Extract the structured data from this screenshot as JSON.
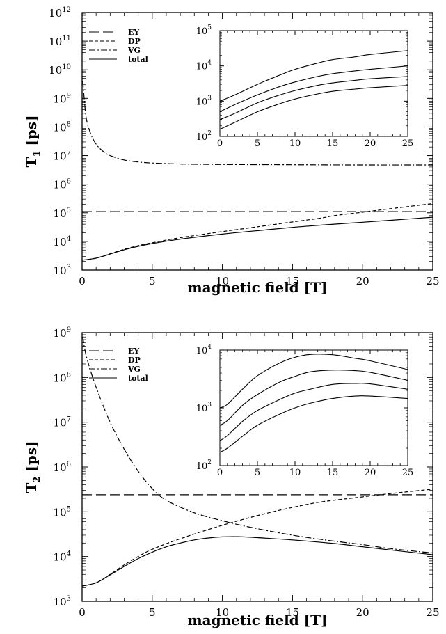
{
  "chart_data": [
    {
      "id": "t1",
      "type": "line",
      "yscale": "log",
      "xlabel": "magnetic field [T]",
      "ylabel_main": "T",
      "ylabel_sub": "1",
      "ylabel_unit": "[ps]",
      "xlim": [
        0,
        25
      ],
      "ylim_exp": [
        3,
        12
      ],
      "xticks": [
        "0",
        "5",
        "10",
        "15",
        "20",
        "25"
      ],
      "yticks": [
        {
          "base": "10",
          "exp": "3"
        },
        {
          "base": "10",
          "exp": "4"
        },
        {
          "base": "10",
          "exp": "5"
        },
        {
          "base": "10",
          "exp": "6"
        },
        {
          "base": "10",
          "exp": "7"
        },
        {
          "base": "10",
          "exp": "8"
        },
        {
          "base": "10",
          "exp": "9"
        },
        {
          "base": "10",
          "exp": "10"
        },
        {
          "base": "10",
          "exp": "11"
        },
        {
          "base": "10",
          "exp": "12"
        }
      ],
      "series": [
        {
          "name": "EY",
          "style": "long-dash",
          "points": [
            [
              0,
              110000
            ],
            [
              25,
              110000
            ]
          ]
        },
        {
          "name": "DP",
          "style": "short-dash",
          "points": [
            [
              0,
              2200
            ],
            [
              1,
              2600
            ],
            [
              2,
              3700
            ],
            [
              3,
              5300
            ],
            [
              4,
              7100
            ],
            [
              5,
              9000
            ],
            [
              7,
              13500
            ],
            [
              10,
              22000
            ],
            [
              13,
              35000
            ],
            [
              15,
              48000
            ],
            [
              17,
              65000
            ],
            [
              18,
              80000
            ],
            [
              20,
              105000
            ],
            [
              22,
              140000
            ],
            [
              25,
              210000
            ]
          ]
        },
        {
          "name": "VG",
          "style": "dash-dot",
          "points": [
            [
              0.05,
              4000000000
            ],
            [
              0.15,
              1000000000
            ],
            [
              0.3,
              200000000
            ],
            [
              0.6,
              60000000
            ],
            [
              1,
              25000000
            ],
            [
              1.5,
              14000000
            ],
            [
              2,
              10000000
            ],
            [
              3,
              7000000
            ],
            [
              4,
              6000000
            ],
            [
              5,
              5500000
            ],
            [
              7,
              5100000
            ],
            [
              10,
              4900000
            ],
            [
              15,
              4800000
            ],
            [
              20,
              4700000
            ],
            [
              25,
              4700000
            ]
          ]
        },
        {
          "name": "total",
          "style": "solid",
          "points": [
            [
              0,
              2200
            ],
            [
              1,
              2600
            ],
            [
              2,
              3600
            ],
            [
              3,
              5100
            ],
            [
              4,
              6700
            ],
            [
              5,
              8400
            ],
            [
              7,
              12000
            ],
            [
              10,
              18000
            ],
            [
              13,
              25000
            ],
            [
              15,
              31000
            ],
            [
              17,
              37000
            ],
            [
              20,
              47000
            ],
            [
              22,
              55000
            ],
            [
              25,
              70000
            ]
          ]
        }
      ],
      "inset": {
        "xlim": [
          0,
          25
        ],
        "ylim_exp": [
          2,
          5
        ],
        "xticks": [
          "0",
          "5",
          "10",
          "15",
          "20",
          "25"
        ],
        "yticks": [
          {
            "base": "10",
            "exp": "2"
          },
          {
            "base": "10",
            "exp": "3"
          },
          {
            "base": "10",
            "exp": "4"
          },
          {
            "base": "10",
            "exp": "5"
          }
        ],
        "series": [
          {
            "points": [
              [
                0,
                1000
              ],
              [
                2,
                1500
              ],
              [
                5,
                3000
              ],
              [
                8,
                5500
              ],
              [
                10,
                8000
              ],
              [
                13,
                12000
              ],
              [
                15,
                15000
              ],
              [
                18,
                18000
              ],
              [
                20,
                21000
              ],
              [
                25,
                27000
              ]
            ]
          },
          {
            "points": [
              [
                0,
                500
              ],
              [
                2,
                800
              ],
              [
                5,
                1500
              ],
              [
                8,
                2600
              ],
              [
                10,
                3500
              ],
              [
                13,
                5000
              ],
              [
                15,
                6000
              ],
              [
                18,
                7200
              ],
              [
                20,
                8000
              ],
              [
                25,
                10000
              ]
            ]
          },
          {
            "points": [
              [
                0,
                300
              ],
              [
                2,
                450
              ],
              [
                5,
                900
              ],
              [
                8,
                1500
              ],
              [
                10,
                2000
              ],
              [
                13,
                2800
              ],
              [
                15,
                3300
              ],
              [
                18,
                3900
              ],
              [
                20,
                4300
              ],
              [
                25,
                5000
              ]
            ]
          },
          {
            "points": [
              [
                0,
                160
              ],
              [
                2,
                250
              ],
              [
                5,
                500
              ],
              [
                8,
                850
              ],
              [
                10,
                1150
              ],
              [
                13,
                1600
              ],
              [
                15,
                1900
              ],
              [
                18,
                2200
              ],
              [
                20,
                2400
              ],
              [
                25,
                2800
              ]
            ]
          }
        ]
      }
    },
    {
      "id": "t2",
      "type": "line",
      "yscale": "log",
      "xlabel": "magnetic field [T]",
      "ylabel_main": "T",
      "ylabel_sub": "2",
      "ylabel_unit": "[ps]",
      "xlim": [
        0,
        25
      ],
      "ylim_exp": [
        3,
        9
      ],
      "xticks": [
        "0",
        "5",
        "10",
        "15",
        "20",
        "25"
      ],
      "yticks": [
        {
          "base": "10",
          "exp": "3"
        },
        {
          "base": "10",
          "exp": "4"
        },
        {
          "base": "10",
          "exp": "5"
        },
        {
          "base": "10",
          "exp": "6"
        },
        {
          "base": "10",
          "exp": "7"
        },
        {
          "base": "10",
          "exp": "8"
        },
        {
          "base": "10",
          "exp": "9"
        }
      ],
      "series": [
        {
          "name": "EY",
          "style": "long-dash",
          "points": [
            [
              0,
              240000
            ],
            [
              25,
              240000
            ]
          ]
        },
        {
          "name": "DP",
          "style": "short-dash",
          "points": [
            [
              0,
              2200
            ],
            [
              1,
              2600
            ],
            [
              2,
              4000
            ],
            [
              3,
              6500
            ],
            [
              4,
              10000
            ],
            [
              5,
              14500
            ],
            [
              7,
              25000
            ],
            [
              10,
              50000
            ],
            [
              13,
              90000
            ],
            [
              15,
              125000
            ],
            [
              17,
              165000
            ],
            [
              20,
              215000
            ],
            [
              22,
              255000
            ],
            [
              25,
              320000
            ]
          ]
        },
        {
          "name": "VG",
          "style": "dash-dot",
          "points": [
            [
              0.05,
              800000000
            ],
            [
              0.3,
              300000000
            ],
            [
              1,
              60000000
            ],
            [
              2,
              10000000
            ],
            [
              3,
              2500000
            ],
            [
              4,
              800000
            ],
            [
              5,
              330000
            ],
            [
              6,
              180000
            ],
            [
              8,
              95000
            ],
            [
              10,
              63000
            ],
            [
              12,
              45000
            ],
            [
              15,
              30000
            ],
            [
              18,
              22000
            ],
            [
              20,
              18500
            ],
            [
              22,
              15000
            ],
            [
              25,
              12000
            ]
          ]
        },
        {
          "name": "total",
          "style": "solid",
          "points": [
            [
              0,
              2200
            ],
            [
              1,
              2600
            ],
            [
              2,
              3900
            ],
            [
              3,
              6000
            ],
            [
              4,
              9000
            ],
            [
              5,
              12500
            ],
            [
              6,
              16500
            ],
            [
              7,
              20000
            ],
            [
              8,
              23500
            ],
            [
              9,
              26000
            ],
            [
              10,
              27500
            ],
            [
              11,
              27800
            ],
            [
              12,
              27000
            ],
            [
              15,
              23500
            ],
            [
              18,
              19500
            ],
            [
              20,
              16500
            ],
            [
              22,
              14000
            ],
            [
              25,
              11000
            ]
          ]
        }
      ],
      "inset": {
        "xlim": [
          0,
          25
        ],
        "ylim_exp": [
          2,
          4
        ],
        "xticks": [
          "0",
          "5",
          "10",
          "15",
          "20",
          "25"
        ],
        "yticks": [
          {
            "base": "10",
            "exp": "2"
          },
          {
            "base": "10",
            "exp": "3"
          },
          {
            "base": "10",
            "exp": "4"
          }
        ],
        "series": [
          {
            "points": [
              [
                0,
                1000
              ],
              [
                1,
                1150
              ],
              [
                3,
                2100
              ],
              [
                5,
                3600
              ],
              [
                8,
                6000
              ],
              [
                10,
                7500
              ],
              [
                12,
                8400
              ],
              [
                15,
                8300
              ],
              [
                18,
                7200
              ],
              [
                20,
                6500
              ],
              [
                25,
                4600
              ]
            ]
          },
          {
            "points": [
              [
                0,
                500
              ],
              [
                1,
                600
              ],
              [
                3,
                1100
              ],
              [
                5,
                1700
              ],
              [
                8,
                2800
              ],
              [
                10,
                3500
              ],
              [
                12,
                4200
              ],
              [
                15,
                4500
              ],
              [
                18,
                4400
              ],
              [
                20,
                4100
              ],
              [
                25,
                3000
              ]
            ]
          },
          {
            "points": [
              [
                0,
                270
              ],
              [
                1,
                330
              ],
              [
                3,
                580
              ],
              [
                5,
                900
              ],
              [
                8,
                1400
              ],
              [
                10,
                1800
              ],
              [
                12,
                2100
              ],
              [
                15,
                2550
              ],
              [
                18,
                2650
              ],
              [
                20,
                2600
              ],
              [
                25,
                2100
              ]
            ]
          },
          {
            "points": [
              [
                0,
                170
              ],
              [
                1,
                200
              ],
              [
                3,
                320
              ],
              [
                5,
                500
              ],
              [
                8,
                780
              ],
              [
                10,
                1000
              ],
              [
                12,
                1200
              ],
              [
                15,
                1450
              ],
              [
                18,
                1600
              ],
              [
                20,
                1600
              ],
              [
                25,
                1450
              ]
            ]
          }
        ]
      }
    }
  ]
}
